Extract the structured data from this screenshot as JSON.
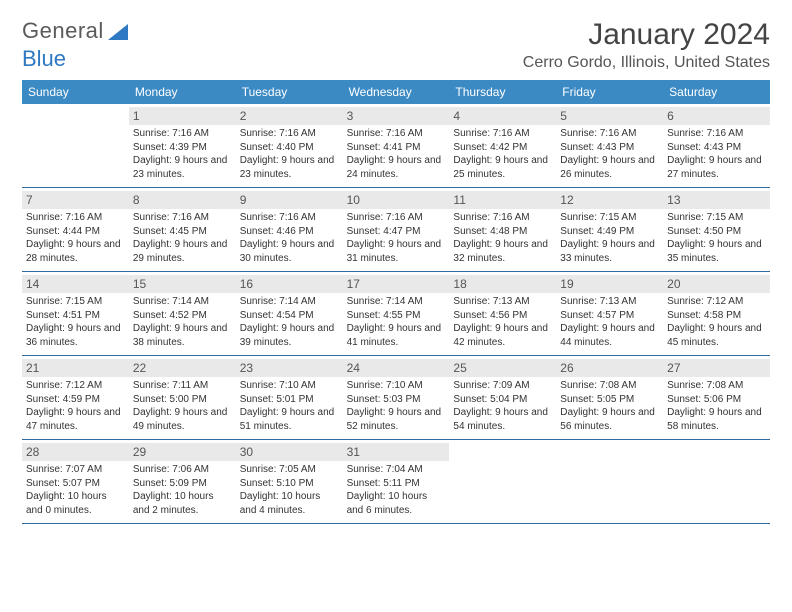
{
  "logo": {
    "text_gray": "General",
    "text_blue": "Blue"
  },
  "title": "January 2024",
  "location": "Cerro Gordo, Illinois, United States",
  "colors": {
    "header_bg": "#3b8ac4",
    "header_text": "#ffffff",
    "daynum_bg": "#e9e9e9",
    "week_divider": "#2f6aa0",
    "body_text": "#333333",
    "logo_gray": "#5a5a5a",
    "logo_blue": "#2f79c2"
  },
  "fonts": {
    "title_size_pt": 22,
    "location_size_pt": 12,
    "dayhead_size_pt": 9,
    "daynum_size_pt": 9,
    "info_size_pt": 7.5
  },
  "day_names": [
    "Sunday",
    "Monday",
    "Tuesday",
    "Wednesday",
    "Thursday",
    "Friday",
    "Saturday"
  ],
  "weeks": [
    [
      {
        "n": "",
        "sr": "",
        "ss": "",
        "dl": ""
      },
      {
        "n": "1",
        "sr": "Sunrise: 7:16 AM",
        "ss": "Sunset: 4:39 PM",
        "dl": "Daylight: 9 hours and 23 minutes."
      },
      {
        "n": "2",
        "sr": "Sunrise: 7:16 AM",
        "ss": "Sunset: 4:40 PM",
        "dl": "Daylight: 9 hours and 23 minutes."
      },
      {
        "n": "3",
        "sr": "Sunrise: 7:16 AM",
        "ss": "Sunset: 4:41 PM",
        "dl": "Daylight: 9 hours and 24 minutes."
      },
      {
        "n": "4",
        "sr": "Sunrise: 7:16 AM",
        "ss": "Sunset: 4:42 PM",
        "dl": "Daylight: 9 hours and 25 minutes."
      },
      {
        "n": "5",
        "sr": "Sunrise: 7:16 AM",
        "ss": "Sunset: 4:43 PM",
        "dl": "Daylight: 9 hours and 26 minutes."
      },
      {
        "n": "6",
        "sr": "Sunrise: 7:16 AM",
        "ss": "Sunset: 4:43 PM",
        "dl": "Daylight: 9 hours and 27 minutes."
      }
    ],
    [
      {
        "n": "7",
        "sr": "Sunrise: 7:16 AM",
        "ss": "Sunset: 4:44 PM",
        "dl": "Daylight: 9 hours and 28 minutes."
      },
      {
        "n": "8",
        "sr": "Sunrise: 7:16 AM",
        "ss": "Sunset: 4:45 PM",
        "dl": "Daylight: 9 hours and 29 minutes."
      },
      {
        "n": "9",
        "sr": "Sunrise: 7:16 AM",
        "ss": "Sunset: 4:46 PM",
        "dl": "Daylight: 9 hours and 30 minutes."
      },
      {
        "n": "10",
        "sr": "Sunrise: 7:16 AM",
        "ss": "Sunset: 4:47 PM",
        "dl": "Daylight: 9 hours and 31 minutes."
      },
      {
        "n": "11",
        "sr": "Sunrise: 7:16 AM",
        "ss": "Sunset: 4:48 PM",
        "dl": "Daylight: 9 hours and 32 minutes."
      },
      {
        "n": "12",
        "sr": "Sunrise: 7:15 AM",
        "ss": "Sunset: 4:49 PM",
        "dl": "Daylight: 9 hours and 33 minutes."
      },
      {
        "n": "13",
        "sr": "Sunrise: 7:15 AM",
        "ss": "Sunset: 4:50 PM",
        "dl": "Daylight: 9 hours and 35 minutes."
      }
    ],
    [
      {
        "n": "14",
        "sr": "Sunrise: 7:15 AM",
        "ss": "Sunset: 4:51 PM",
        "dl": "Daylight: 9 hours and 36 minutes."
      },
      {
        "n": "15",
        "sr": "Sunrise: 7:14 AM",
        "ss": "Sunset: 4:52 PM",
        "dl": "Daylight: 9 hours and 38 minutes."
      },
      {
        "n": "16",
        "sr": "Sunrise: 7:14 AM",
        "ss": "Sunset: 4:54 PM",
        "dl": "Daylight: 9 hours and 39 minutes."
      },
      {
        "n": "17",
        "sr": "Sunrise: 7:14 AM",
        "ss": "Sunset: 4:55 PM",
        "dl": "Daylight: 9 hours and 41 minutes."
      },
      {
        "n": "18",
        "sr": "Sunrise: 7:13 AM",
        "ss": "Sunset: 4:56 PM",
        "dl": "Daylight: 9 hours and 42 minutes."
      },
      {
        "n": "19",
        "sr": "Sunrise: 7:13 AM",
        "ss": "Sunset: 4:57 PM",
        "dl": "Daylight: 9 hours and 44 minutes."
      },
      {
        "n": "20",
        "sr": "Sunrise: 7:12 AM",
        "ss": "Sunset: 4:58 PM",
        "dl": "Daylight: 9 hours and 45 minutes."
      }
    ],
    [
      {
        "n": "21",
        "sr": "Sunrise: 7:12 AM",
        "ss": "Sunset: 4:59 PM",
        "dl": "Daylight: 9 hours and 47 minutes."
      },
      {
        "n": "22",
        "sr": "Sunrise: 7:11 AM",
        "ss": "Sunset: 5:00 PM",
        "dl": "Daylight: 9 hours and 49 minutes."
      },
      {
        "n": "23",
        "sr": "Sunrise: 7:10 AM",
        "ss": "Sunset: 5:01 PM",
        "dl": "Daylight: 9 hours and 51 minutes."
      },
      {
        "n": "24",
        "sr": "Sunrise: 7:10 AM",
        "ss": "Sunset: 5:03 PM",
        "dl": "Daylight: 9 hours and 52 minutes."
      },
      {
        "n": "25",
        "sr": "Sunrise: 7:09 AM",
        "ss": "Sunset: 5:04 PM",
        "dl": "Daylight: 9 hours and 54 minutes."
      },
      {
        "n": "26",
        "sr": "Sunrise: 7:08 AM",
        "ss": "Sunset: 5:05 PM",
        "dl": "Daylight: 9 hours and 56 minutes."
      },
      {
        "n": "27",
        "sr": "Sunrise: 7:08 AM",
        "ss": "Sunset: 5:06 PM",
        "dl": "Daylight: 9 hours and 58 minutes."
      }
    ],
    [
      {
        "n": "28",
        "sr": "Sunrise: 7:07 AM",
        "ss": "Sunset: 5:07 PM",
        "dl": "Daylight: 10 hours and 0 minutes."
      },
      {
        "n": "29",
        "sr": "Sunrise: 7:06 AM",
        "ss": "Sunset: 5:09 PM",
        "dl": "Daylight: 10 hours and 2 minutes."
      },
      {
        "n": "30",
        "sr": "Sunrise: 7:05 AM",
        "ss": "Sunset: 5:10 PM",
        "dl": "Daylight: 10 hours and 4 minutes."
      },
      {
        "n": "31",
        "sr": "Sunrise: 7:04 AM",
        "ss": "Sunset: 5:11 PM",
        "dl": "Daylight: 10 hours and 6 minutes."
      },
      {
        "n": "",
        "sr": "",
        "ss": "",
        "dl": ""
      },
      {
        "n": "",
        "sr": "",
        "ss": "",
        "dl": ""
      },
      {
        "n": "",
        "sr": "",
        "ss": "",
        "dl": ""
      }
    ]
  ]
}
